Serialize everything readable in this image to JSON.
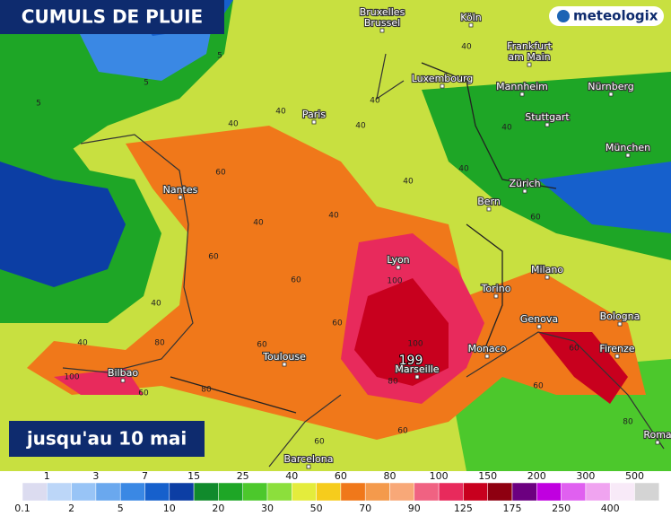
{
  "header": {
    "title": "CUMULS DE PLUIE",
    "brand": "meteologix"
  },
  "subtitle": "jusqu'au 10 mai",
  "cities": [
    {
      "name": [
        "Bruxelles",
        "Brussel"
      ]
    },
    {
      "name": [
        "Köln"
      ]
    },
    {
      "name": [
        "Frankfurt",
        "am Main"
      ]
    },
    {
      "name": [
        "Luxembourg"
      ]
    },
    {
      "name": [
        "Mannheim"
      ]
    },
    {
      "name": [
        "Nürnberg"
      ]
    },
    {
      "name": [
        "Paris"
      ]
    },
    {
      "name": [
        "Stuttgart"
      ]
    },
    {
      "name": [
        "München"
      ]
    },
    {
      "name": [
        "Nantes"
      ]
    },
    {
      "name": [
        "Zürich"
      ]
    },
    {
      "name": [
        "Bern"
      ]
    },
    {
      "name": [
        "Lyon"
      ]
    },
    {
      "name": [
        "Milano"
      ]
    },
    {
      "name": [
        "Torino"
      ]
    },
    {
      "name": [
        "Genova"
      ]
    },
    {
      "name": [
        "Bologna"
      ]
    },
    {
      "name": [
        "Monaco"
      ]
    },
    {
      "name": [
        "Toulouse"
      ]
    },
    {
      "name": [
        "Marseille"
      ]
    },
    {
      "name": [
        "Firenze"
      ]
    },
    {
      "name": [
        "Bilbao"
      ]
    },
    {
      "name": [
        "Roma"
      ]
    },
    {
      "name": [
        "Barcelona"
      ]
    }
  ],
  "contour_labels": [
    5,
    5,
    5,
    40,
    40,
    40,
    40,
    40,
    40,
    40,
    40,
    40,
    60,
    60,
    60,
    60,
    60,
    60,
    60,
    60,
    80,
    80,
    80,
    100,
    100,
    100,
    199,
    40,
    60,
    40,
    40,
    60,
    80,
    60
  ],
  "legend": {
    "bounds": [
      0.1,
      1,
      2,
      3,
      5,
      7,
      10,
      15,
      20,
      25,
      30,
      40,
      50,
      60,
      70,
      80,
      90,
      100,
      125,
      150,
      175,
      200,
      250,
      300,
      400,
      500
    ],
    "colors": [
      "#dcdcf0",
      "#bcd6f8",
      "#98c4f6",
      "#6aa8ee",
      "#3a88e4",
      "#1660cc",
      "#0c3ea4",
      "#108a2c",
      "#1ea626",
      "#4cc82c",
      "#8cdf3c",
      "#e4ec3c",
      "#f6cc1c",
      "#f0781a",
      "#f49a4c",
      "#f8a878",
      "#f06282",
      "#e82a5c",
      "#c8001e",
      "#8e0010",
      "#6c0080",
      "#c000e0",
      "#e060f0",
      "#f0a4f0",
      "#f8eaf8",
      "#d4d4d4"
    ]
  }
}
